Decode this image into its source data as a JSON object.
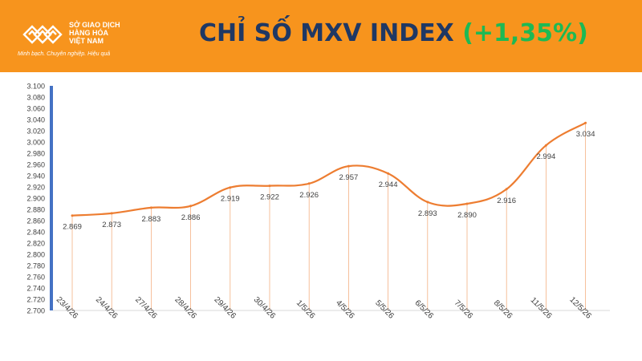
{
  "header": {
    "logo_lines": [
      "SỞ GIAO DỊCH",
      "HÀNG HÓA",
      "VIỆT NAM"
    ],
    "logo_slogan": "Minh bạch. Chuyên nghiệp. Hiệu quả",
    "title": "CHỈ SỐ MXV INDEX",
    "change": "(+1,35%)",
    "background_color": "#F7941D",
    "title_color": "#1F3864",
    "change_color": "#1DB954"
  },
  "chart_data": {
    "type": "line",
    "title": "CHỈ SỐ MXV INDEX",
    "xlabel": "",
    "ylabel": "",
    "categories": [
      "23/4/26",
      "24/4/26",
      "27/4/26",
      "28/4/26",
      "29/4/26",
      "30/4/26",
      "1/5/26",
      "4/5/26",
      "5/5/26",
      "6/5/26",
      "7/5/26",
      "8/5/26",
      "11/5/26",
      "12/5/26"
    ],
    "series": [
      {
        "values": [
          2869,
          2873,
          2883,
          2886,
          2919,
          2922,
          2926,
          2957,
          2944,
          2893,
          2890,
          2916,
          2994,
          3034
        ],
        "data_labels": [
          "2.869",
          "2.873",
          "2.883",
          "2.886",
          "2.919",
          "2.922",
          "2.926",
          "2.957",
          "2.944",
          "2.893",
          "2.890",
          "2.916",
          "2.994",
          "3.034"
        ],
        "color": "#ED7D31"
      }
    ],
    "ylim": [
      2700,
      3100
    ],
    "yticks": [
      2700,
      2720,
      2740,
      2760,
      2780,
      2800,
      2820,
      2840,
      2860,
      2880,
      2900,
      2920,
      2940,
      2960,
      2980,
      3000,
      3020,
      3040,
      3060,
      3080,
      3100
    ],
    "ytick_labels": [
      "2.700",
      "2.720",
      "2.740",
      "2.760",
      "2.780",
      "2.800",
      "2.820",
      "2.840",
      "2.860",
      "2.880",
      "2.900",
      "2.920",
      "2.940",
      "2.960",
      "2.980",
      "3.000",
      "3.020",
      "3.040",
      "3.060",
      "3.080",
      "3.100"
    ],
    "drop_lines": true,
    "grid": false,
    "legend": "none",
    "axis_accent_color": "#4472C4"
  }
}
